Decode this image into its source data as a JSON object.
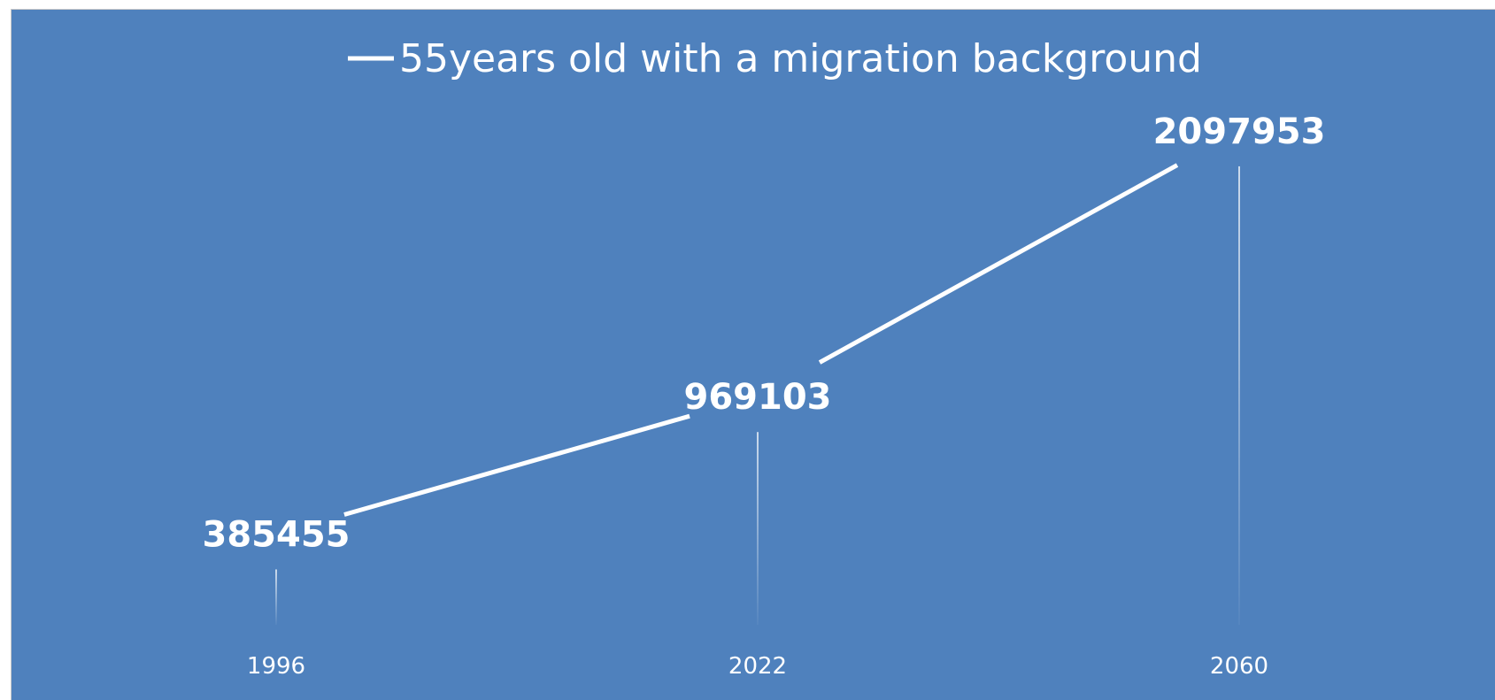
{
  "colors": {
    "background": "#4f81bd",
    "line": "#ffffff",
    "text": "#ffffff"
  },
  "chart_data": {
    "type": "line",
    "title": "",
    "xlabel": "",
    "ylabel": "",
    "categories": [
      "1996",
      "2022",
      "2060"
    ],
    "series": [
      {
        "name": "55years old with a migration background",
        "values": [
          385455,
          969103,
          2097953
        ]
      }
    ],
    "ylim": [
      0,
      2500000
    ],
    "grid": false,
    "legend": "top-center",
    "data_labels": true,
    "drop_lines": true
  }
}
